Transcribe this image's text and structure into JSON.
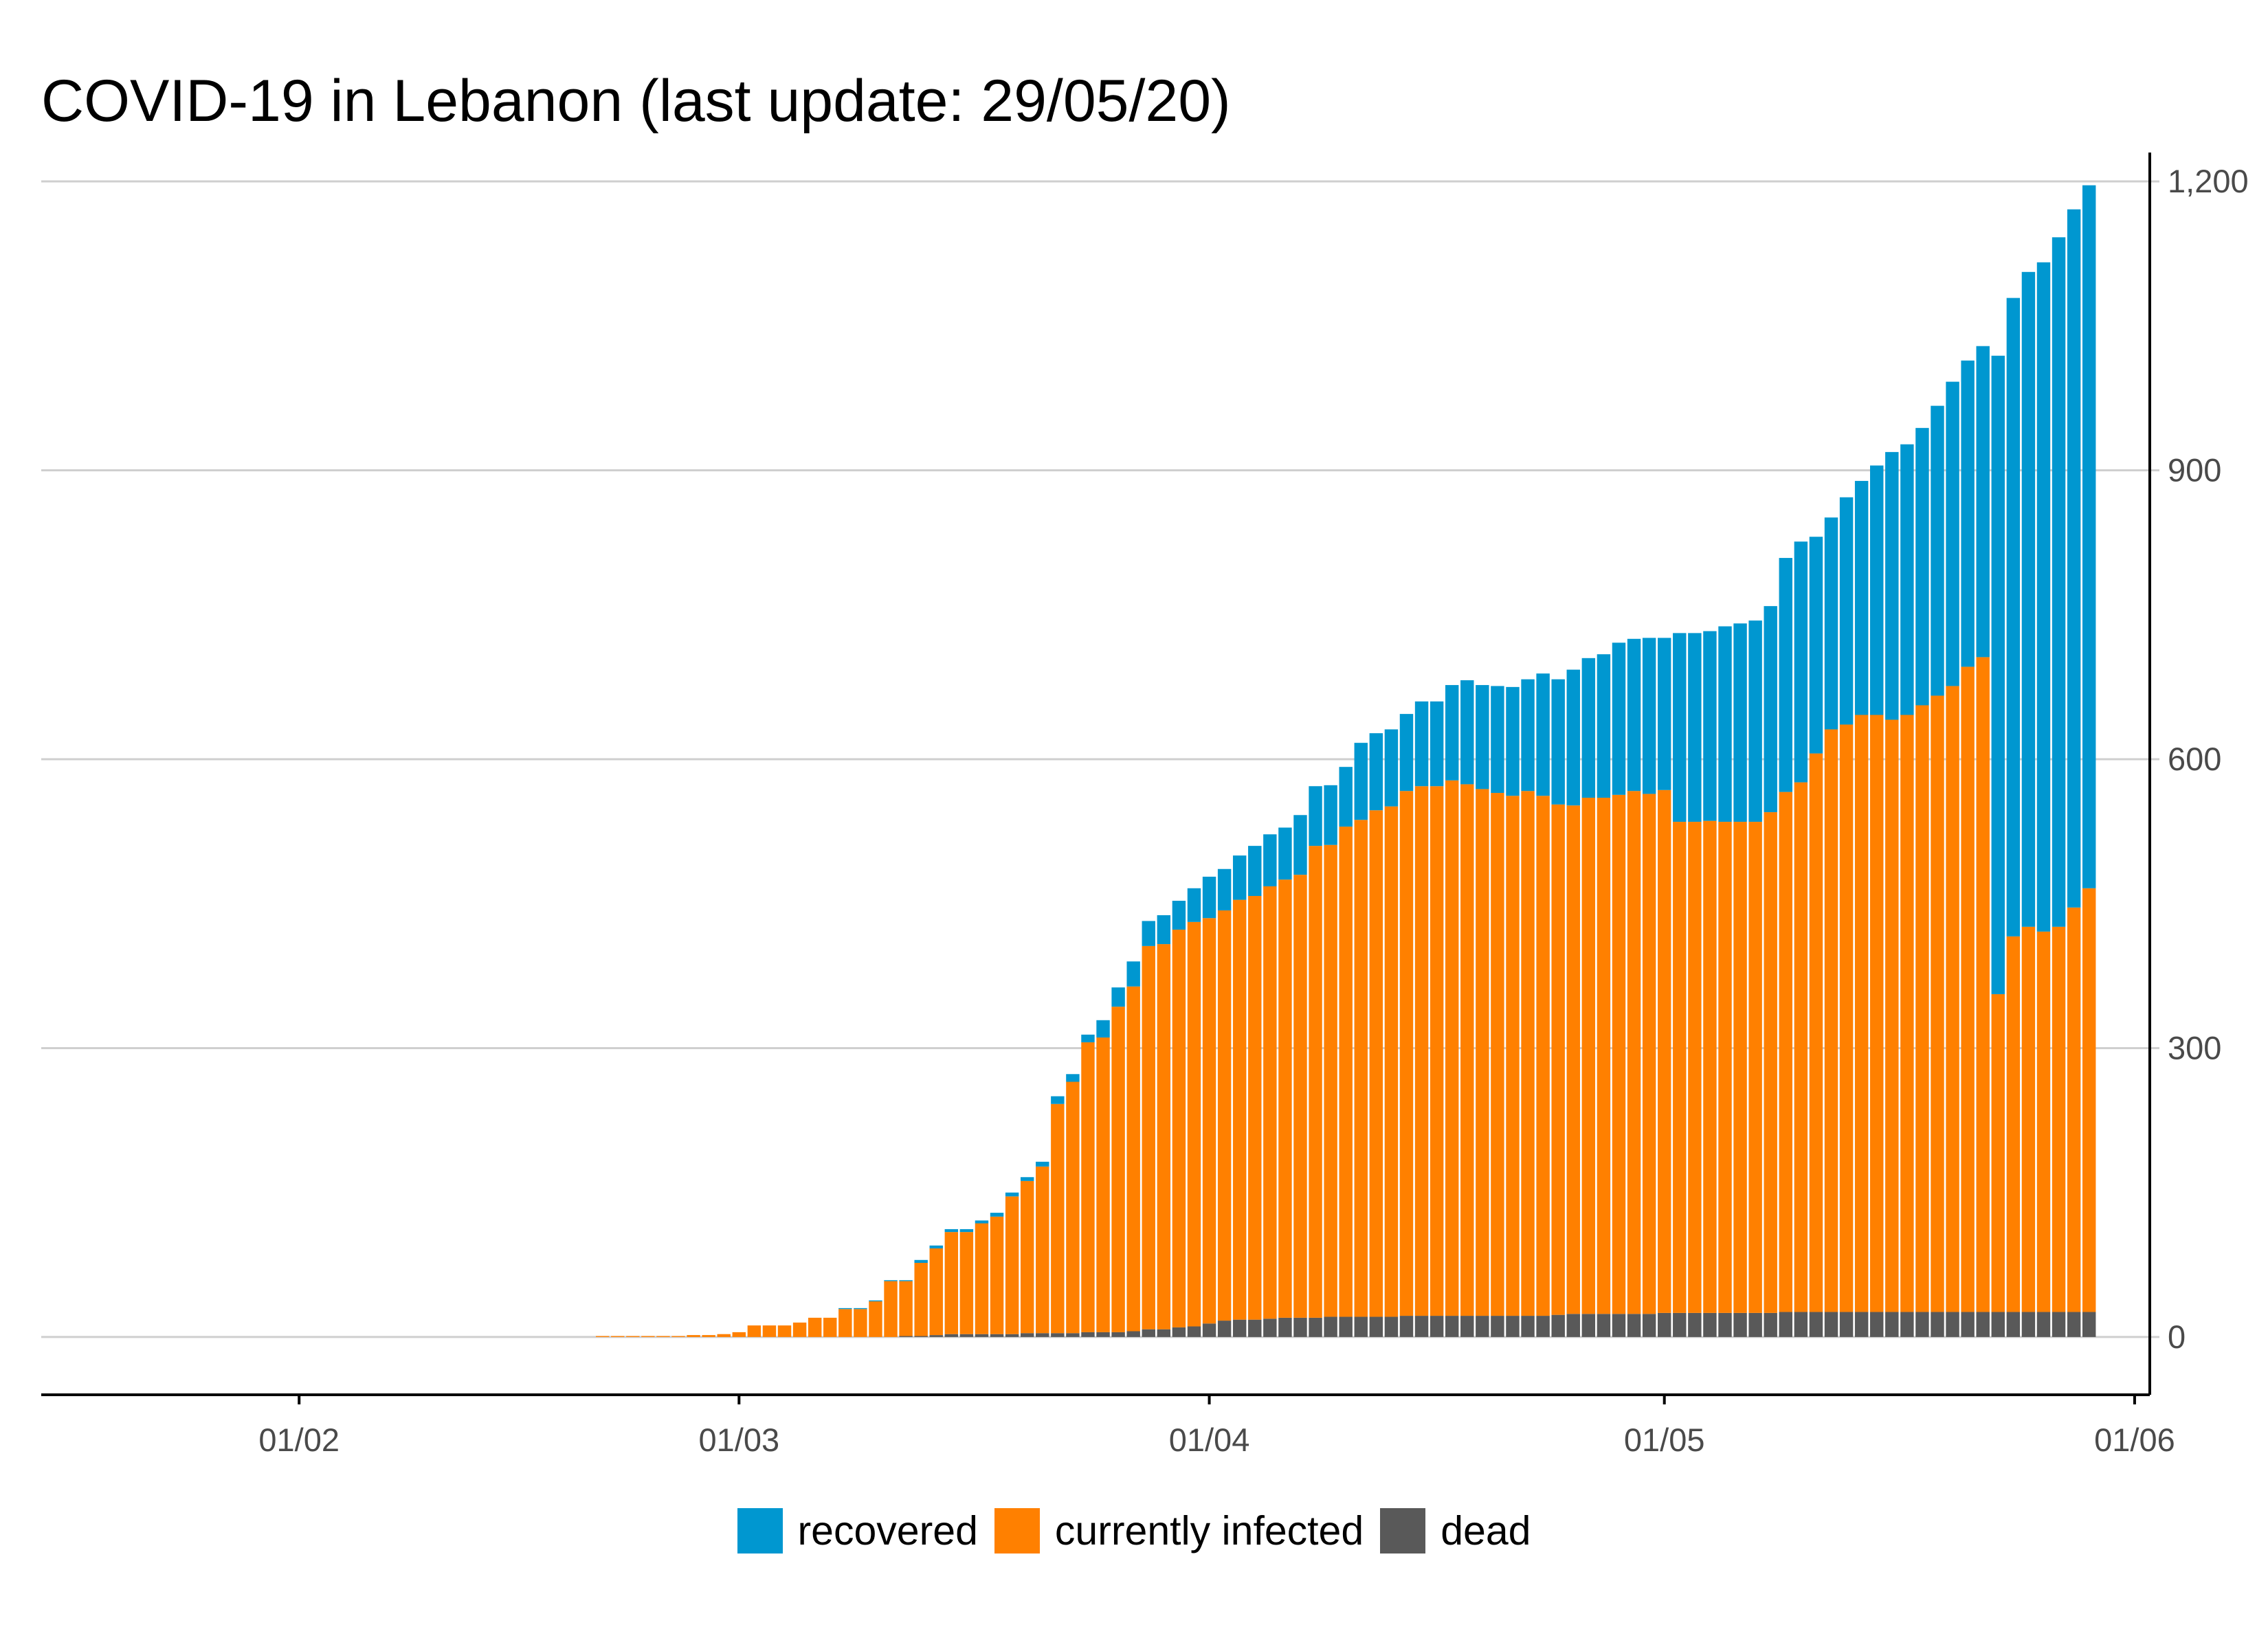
{
  "chart_data": {
    "type": "bar",
    "stacked": true,
    "title": "COVID-19 in Lebanon (last update: 29/05/20)",
    "xlabel": "",
    "ylabel": "",
    "y_axis_side": "right",
    "ylim": [
      -60,
      1230
    ],
    "y_ticks": [
      0,
      300,
      600,
      900,
      1200
    ],
    "y_tick_labels": [
      "0",
      "300",
      "600",
      "900",
      "1,200"
    ],
    "x_range": [
      "2020-01-15",
      "2020-06-02"
    ],
    "x_ticks": [
      "2020-02-01",
      "2020-03-01",
      "2020-04-01",
      "2020-05-01",
      "2020-06-01"
    ],
    "x_tick_labels": [
      "01/02",
      "01/03",
      "01/04",
      "01/05",
      "01/06"
    ],
    "grid": "horizontal",
    "legend_position": "bottom",
    "dates": [
      "2020-02-21",
      "2020-02-22",
      "2020-02-23",
      "2020-02-24",
      "2020-02-25",
      "2020-02-26",
      "2020-02-27",
      "2020-02-28",
      "2020-02-29",
      "2020-03-01",
      "2020-03-02",
      "2020-03-03",
      "2020-03-04",
      "2020-03-05",
      "2020-03-06",
      "2020-03-07",
      "2020-03-08",
      "2020-03-09",
      "2020-03-10",
      "2020-03-11",
      "2020-03-12",
      "2020-03-13",
      "2020-03-14",
      "2020-03-15",
      "2020-03-16",
      "2020-03-17",
      "2020-03-18",
      "2020-03-19",
      "2020-03-20",
      "2020-03-21",
      "2020-03-22",
      "2020-03-23",
      "2020-03-24",
      "2020-03-25",
      "2020-03-26",
      "2020-03-27",
      "2020-03-28",
      "2020-03-29",
      "2020-03-30",
      "2020-03-31",
      "2020-04-01",
      "2020-04-02",
      "2020-04-03",
      "2020-04-04",
      "2020-04-05",
      "2020-04-06",
      "2020-04-07",
      "2020-04-08",
      "2020-04-09",
      "2020-04-10",
      "2020-04-11",
      "2020-04-12",
      "2020-04-13",
      "2020-04-14",
      "2020-04-15",
      "2020-04-16",
      "2020-04-17",
      "2020-04-18",
      "2020-04-19",
      "2020-04-20",
      "2020-04-21",
      "2020-04-22",
      "2020-04-23",
      "2020-04-24",
      "2020-04-25",
      "2020-04-26",
      "2020-04-27",
      "2020-04-28",
      "2020-04-29",
      "2020-04-30",
      "2020-05-01",
      "2020-05-02",
      "2020-05-03",
      "2020-05-04",
      "2020-05-05",
      "2020-05-06",
      "2020-05-07",
      "2020-05-08",
      "2020-05-09",
      "2020-05-10",
      "2020-05-11",
      "2020-05-12",
      "2020-05-13",
      "2020-05-14",
      "2020-05-15",
      "2020-05-16",
      "2020-05-17",
      "2020-05-18",
      "2020-05-19",
      "2020-05-20",
      "2020-05-21",
      "2020-05-22",
      "2020-05-23",
      "2020-05-24",
      "2020-05-25",
      "2020-05-26",
      "2020-05-27",
      "2020-05-28",
      "2020-05-29"
    ],
    "series": [
      {
        "name": "dead",
        "color": "#595959",
        "values": [
          0,
          0,
          0,
          0,
          0,
          0,
          0,
          0,
          0,
          0,
          0,
          0,
          0,
          0,
          0,
          0,
          0,
          0,
          0,
          0,
          1,
          1,
          2,
          3,
          3,
          3,
          3,
          3,
          4,
          4,
          4,
          4,
          5,
          5,
          5,
          6,
          8,
          8,
          10,
          11,
          14,
          17,
          18,
          18,
          19,
          20,
          20,
          20,
          21,
          21,
          21,
          21,
          21,
          22,
          22,
          22,
          22,
          22,
          22,
          22,
          22,
          22,
          22,
          23,
          24,
          24,
          24,
          24,
          24,
          24,
          25,
          25,
          25,
          25,
          25,
          25,
          25,
          25,
          26,
          26,
          26,
          26,
          26,
          26,
          26,
          26,
          26,
          26,
          26,
          26,
          26,
          26,
          26,
          26,
          26,
          26,
          26,
          26,
          26
        ]
      },
      {
        "name": "currently infected",
        "color": "#ff8000",
        "values": [
          1,
          1,
          1,
          1,
          1,
          1,
          2,
          2,
          3,
          5,
          12,
          12,
          12,
          15,
          20,
          20,
          29,
          29,
          37,
          58,
          57,
          76,
          90,
          106,
          106,
          115,
          122,
          143,
          158,
          173,
          238,
          261,
          301,
          306,
          338,
          358,
          398,
          400,
          413,
          420,
          421,
          426,
          436,
          440,
          449,
          455,
          460,
          490,
          490,
          509,
          516,
          526,
          530,
          545,
          550,
          550,
          556,
          552,
          547,
          543,
          540,
          545,
          540,
          530,
          528,
          536,
          536,
          539,
          543,
          540,
          543,
          510,
          510,
          511,
          510,
          510,
          510,
          520,
          540,
          550,
          580,
          605,
          610,
          620,
          620,
          615,
          620,
          630,
          640,
          650,
          670,
          680,
          330,
          390,
          400,
          395,
          400,
          420,
          440
        ]
      },
      {
        "name": "recovered",
        "color": "#0097d0",
        "values": [
          0,
          0,
          0,
          0,
          0,
          0,
          0,
          0,
          0,
          0,
          0,
          0,
          0,
          0,
          0,
          0,
          1,
          1,
          1,
          1,
          1,
          3,
          3,
          3,
          3,
          3,
          4,
          4,
          4,
          5,
          8,
          8,
          8,
          18,
          20,
          26,
          26,
          30,
          30,
          35,
          43,
          43,
          46,
          52,
          54,
          54,
          62,
          62,
          62,
          62,
          80,
          80,
          80,
          80,
          88,
          88,
          99,
          108,
          108,
          111,
          113,
          116,
          127,
          130,
          141,
          145,
          149,
          158,
          158,
          162,
          158,
          196,
          196,
          197,
          203,
          206,
          209,
          214,
          243,
          250,
          225,
          220,
          236,
          243,
          259,
          278,
          281,
          288,
          301,
          316,
          318,
          323,
          663,
          663,
          680,
          695,
          716,
          725,
          730
        ]
      }
    ]
  }
}
